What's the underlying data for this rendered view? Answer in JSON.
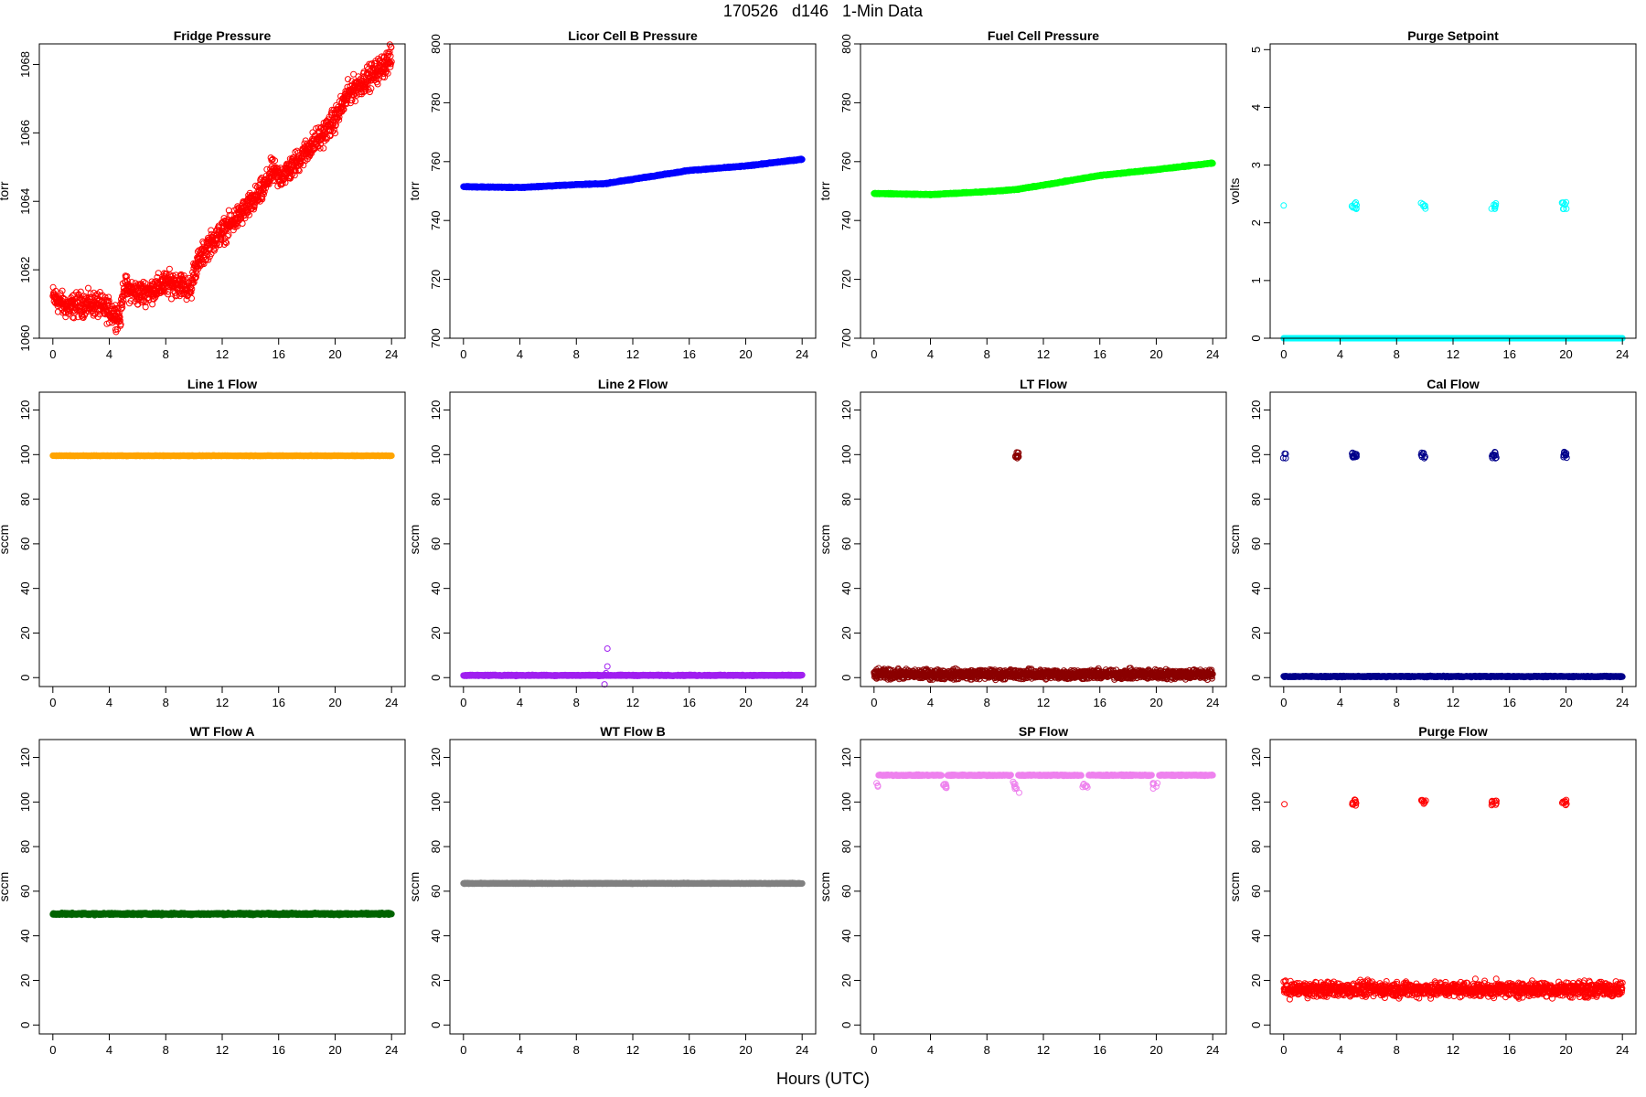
{
  "figure": {
    "title": "170526   d146   1-Min Data",
    "xlabel": "Hours (UTC)"
  },
  "chart_data": [
    {
      "type": "scatter",
      "title": "Fridge Pressure",
      "ylabel": "torr",
      "color": "#ff0000",
      "xlim": [
        0,
        24
      ],
      "xticks": [
        0,
        4,
        8,
        12,
        16,
        20,
        24
      ],
      "ylim": [
        1060,
        1068.6
      ],
      "yticks": [
        1060,
        1062,
        1064,
        1066,
        1068
      ],
      "series": [
        {
          "x": [
            0,
            1,
            2,
            3,
            4,
            4.8,
            5,
            6,
            7,
            8,
            9,
            9.8,
            10,
            11,
            12,
            13,
            14,
            15,
            15.5,
            16,
            17,
            18,
            19,
            20,
            21,
            22,
            23,
            24
          ],
          "y": [
            1061.2,
            1060.9,
            1061.0,
            1061.0,
            1060.8,
            1060.6,
            1061.5,
            1061.3,
            1061.4,
            1061.6,
            1061.6,
            1061.4,
            1062.0,
            1062.7,
            1063.1,
            1063.5,
            1063.9,
            1064.4,
            1064.9,
            1064.7,
            1065.0,
            1065.5,
            1065.9,
            1066.4,
            1067.2,
            1067.5,
            1067.8,
            1068.2
          ],
          "noise": 0.3,
          "points": 1400
        }
      ]
    },
    {
      "type": "scatter",
      "title": "Licor Cell B Pressure",
      "ylabel": "torr",
      "color": "#0000ff",
      "xlim": [
        0,
        24
      ],
      "xticks": [
        0,
        4,
        8,
        12,
        16,
        20,
        24
      ],
      "ylim": [
        700,
        800
      ],
      "yticks": [
        700,
        720,
        740,
        760,
        780,
        800
      ],
      "series": [
        {
          "x": [
            0,
            4,
            8,
            10,
            12,
            16,
            20,
            24
          ],
          "y": [
            751.5,
            751.2,
            752.2,
            752.5,
            754.0,
            757.0,
            758.5,
            760.8
          ],
          "noise": 0.15,
          "points": 1400
        }
      ]
    },
    {
      "type": "scatter",
      "title": "Fuel Cell Pressure",
      "ylabel": "torr",
      "color": "#00ff00",
      "xlim": [
        0,
        24
      ],
      "xticks": [
        0,
        4,
        8,
        12,
        16,
        20,
        24
      ],
      "ylim": [
        700,
        800
      ],
      "yticks": [
        700,
        720,
        740,
        760,
        780,
        800
      ],
      "series": [
        {
          "x": [
            0,
            4,
            8,
            10,
            12,
            16,
            20,
            24
          ],
          "y": [
            749.2,
            748.8,
            749.8,
            750.5,
            752.0,
            755.3,
            757.3,
            759.5
          ],
          "noise": 0.15,
          "points": 1400
        }
      ]
    },
    {
      "type": "scatter",
      "title": "Purge Setpoint",
      "ylabel": "volts",
      "color": "#00ffff",
      "xlim": [
        0,
        24
      ],
      "xticks": [
        0,
        4,
        8,
        12,
        16,
        20,
        24
      ],
      "ylim": [
        0,
        5.1
      ],
      "yticks": [
        0,
        1,
        2,
        3,
        4,
        5
      ],
      "series": [
        {
          "x": [
            0,
            24
          ],
          "y": [
            0,
            0
          ],
          "noise": 0,
          "points": 700
        },
        {
          "x": [
            0,
            24
          ],
          "y": [
            0,
            0
          ],
          "points": 0,
          "clusters": [
            {
              "x": 0,
              "y": 2.3,
              "n": 1
            },
            {
              "x": 5,
              "y": 2.3,
              "n": 9
            },
            {
              "x": 9.9,
              "y": 2.3,
              "n": 6
            },
            {
              "x": 14.9,
              "y": 2.3,
              "n": 8
            },
            {
              "x": 19.9,
              "y": 2.3,
              "n": 8
            }
          ]
        }
      ]
    },
    {
      "type": "scatter",
      "title": "Line 1 Flow",
      "ylabel": "sccm",
      "color": "#ffa500",
      "xlim": [
        0,
        24
      ],
      "xticks": [
        0,
        4,
        8,
        12,
        16,
        20,
        24
      ],
      "ylim": [
        -4,
        128
      ],
      "yticks": [
        0,
        20,
        40,
        60,
        80,
        100,
        120
      ],
      "series": [
        {
          "x": [
            0,
            24
          ],
          "y": [
            99.5,
            99.5
          ],
          "noise": 0.1,
          "points": 900
        }
      ]
    },
    {
      "type": "scatter",
      "title": "Line 2 Flow",
      "ylabel": "sccm",
      "color": "#a020f0",
      "xlim": [
        0,
        24
      ],
      "xticks": [
        0,
        4,
        8,
        12,
        16,
        20,
        24
      ],
      "ylim": [
        -4,
        128
      ],
      "yticks": [
        0,
        20,
        40,
        60,
        80,
        100,
        120
      ],
      "series": [
        {
          "x": [
            0,
            24
          ],
          "y": [
            1,
            1
          ],
          "noise": 0.2,
          "points": 900
        },
        {
          "x": [
            0,
            24
          ],
          "y": [
            0,
            0
          ],
          "points": 0,
          "clusters": [
            {
              "x": 10.2,
              "y": 13,
              "n": 1
            },
            {
              "x": 10.2,
              "y": 5,
              "n": 1
            },
            {
              "x": 10.1,
              "y": 2,
              "n": 1
            },
            {
              "x": 10.0,
              "y": -3,
              "n": 1
            }
          ]
        }
      ]
    },
    {
      "type": "scatter",
      "title": "LT Flow",
      "ylabel": "sccm",
      "color": "#8b0000",
      "xlim": [
        0,
        24
      ],
      "xticks": [
        0,
        4,
        8,
        12,
        16,
        20,
        24
      ],
      "ylim": [
        -4,
        128
      ],
      "yticks": [
        0,
        20,
        40,
        60,
        80,
        100,
        120
      ],
      "series": [
        {
          "x": [
            0,
            24
          ],
          "y": [
            1.5,
            1.5
          ],
          "noise": 1.8,
          "points": 1400
        },
        {
          "x": [
            0,
            24
          ],
          "y": [
            0,
            0
          ],
          "points": 0,
          "clusters": [
            {
              "x": 10.1,
              "y": 99.5,
              "n": 14
            }
          ]
        }
      ]
    },
    {
      "type": "scatter",
      "title": "Cal Flow",
      "ylabel": "sccm",
      "color": "#00008b",
      "xlim": [
        0,
        24
      ],
      "xticks": [
        0,
        4,
        8,
        12,
        16,
        20,
        24
      ],
      "ylim": [
        -4,
        128
      ],
      "yticks": [
        0,
        20,
        40,
        60,
        80,
        100,
        120
      ],
      "series": [
        {
          "x": [
            0,
            24
          ],
          "y": [
            0.5,
            0.5
          ],
          "noise": 0.2,
          "points": 900
        },
        {
          "x": [
            0,
            24
          ],
          "y": [
            0,
            0
          ],
          "points": 0,
          "clusters": [
            {
              "x": 0.1,
              "y": 99.8,
              "n": 4
            },
            {
              "x": 5.0,
              "y": 99.8,
              "n": 14
            },
            {
              "x": 9.9,
              "y": 99.8,
              "n": 10
            },
            {
              "x": 14.9,
              "y": 99.8,
              "n": 12
            },
            {
              "x": 19.9,
              "y": 99.8,
              "n": 10
            }
          ]
        }
      ]
    },
    {
      "type": "scatter",
      "title": "WT Flow A",
      "ylabel": "sccm",
      "color": "#006400",
      "xlim": [
        0,
        24
      ],
      "xticks": [
        0,
        4,
        8,
        12,
        16,
        20,
        24
      ],
      "ylim": [
        -4,
        128
      ],
      "yticks": [
        0,
        20,
        40,
        60,
        80,
        100,
        120
      ],
      "series": [
        {
          "x": [
            0,
            24
          ],
          "y": [
            49.8,
            49.8
          ],
          "noise": 0.35,
          "points": 1200
        }
      ]
    },
    {
      "type": "scatter",
      "title": "WT Flow B",
      "ylabel": "sccm",
      "color": "#808080",
      "xlim": [
        0,
        24
      ],
      "xticks": [
        0,
        4,
        8,
        12,
        16,
        20,
        24
      ],
      "ylim": [
        -4,
        128
      ],
      "yticks": [
        0,
        20,
        40,
        60,
        80,
        100,
        120
      ],
      "series": [
        {
          "x": [
            0,
            24
          ],
          "y": [
            63.5,
            63.5
          ],
          "noise": 0.15,
          "points": 900
        }
      ]
    },
    {
      "type": "scatter",
      "title": "SP Flow",
      "ylabel": "sccm",
      "color": "#ee82ee",
      "xlim": [
        0,
        24
      ],
      "xticks": [
        0,
        4,
        8,
        12,
        16,
        20,
        24
      ],
      "ylim": [
        -4,
        128
      ],
      "yticks": [
        0,
        20,
        40,
        60,
        80,
        100,
        120
      ],
      "series": [
        {
          "x": [
            0,
            24
          ],
          "y": [
            112,
            112
          ],
          "noise": 0.2,
          "points": 900,
          "gaps": [
            [
              -0.2,
              0.3
            ],
            [
              4.8,
              5.2
            ],
            [
              9.7,
              10.2
            ],
            [
              14.7,
              15.2
            ],
            [
              19.7,
              20.2
            ]
          ]
        },
        {
          "x": [
            0,
            24
          ],
          "y": [
            0,
            0
          ],
          "points": 0,
          "clusters": [
            {
              "x": 0.15,
              "y": 107.5,
              "n": 3
            },
            {
              "x": 5.0,
              "y": 107.5,
              "n": 8
            },
            {
              "x": 9.95,
              "y": 107.5,
              "n": 6
            },
            {
              "x": 10.2,
              "y": 105.5,
              "n": 2
            },
            {
              "x": 14.95,
              "y": 107.5,
              "n": 8
            },
            {
              "x": 19.95,
              "y": 107.5,
              "n": 6
            }
          ]
        }
      ]
    },
    {
      "type": "scatter",
      "title": "Purge Flow",
      "ylabel": "sccm",
      "color": "#ff0000",
      "xlim": [
        0,
        24
      ],
      "xticks": [
        0,
        4,
        8,
        12,
        16,
        20,
        24
      ],
      "ylim": [
        -4,
        128
      ],
      "yticks": [
        0,
        20,
        40,
        60,
        80,
        100,
        120
      ],
      "series": [
        {
          "x": [
            0,
            24
          ],
          "y": [
            16,
            16
          ],
          "noise": 2.8,
          "points": 1300
        },
        {
          "x": [
            0,
            24
          ],
          "y": [
            0,
            0
          ],
          "points": 0,
          "clusters": [
            {
              "x": 0.05,
              "y": 99,
              "n": 1
            },
            {
              "x": 5.0,
              "y": 99.8,
              "n": 10
            },
            {
              "x": 9.9,
              "y": 99.8,
              "n": 8
            },
            {
              "x": 14.9,
              "y": 99.8,
              "n": 10
            },
            {
              "x": 19.9,
              "y": 99.8,
              "n": 8
            }
          ]
        }
      ]
    }
  ]
}
